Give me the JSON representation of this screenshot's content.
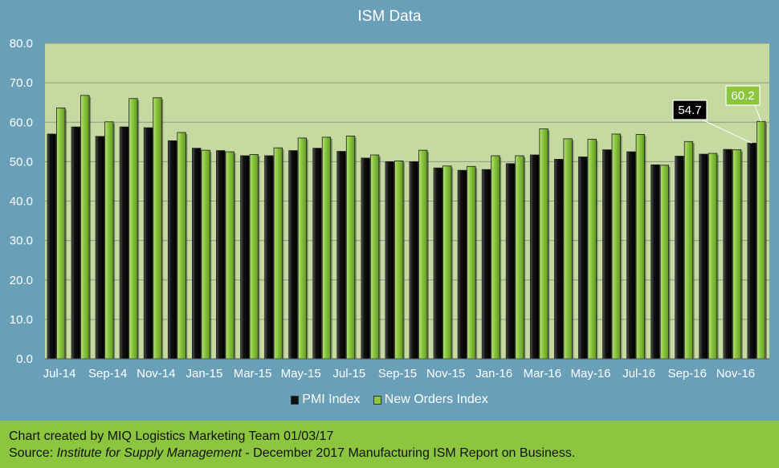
{
  "chart_data": {
    "type": "bar",
    "title": "ISM Data",
    "categories": [
      "Jul-14",
      "Aug-14",
      "Sep-14",
      "Oct-14",
      "Nov-14",
      "Dec-14",
      "Jan-15",
      "Feb-15",
      "Mar-15",
      "Apr-15",
      "May-15",
      "Jun-15",
      "Jul-15",
      "Aug-15",
      "Sep-15",
      "Oct-15",
      "Nov-15",
      "Dec-15",
      "Jan-16",
      "Feb-16",
      "Mar-16",
      "Apr-16",
      "May-16",
      "Jun-16",
      "Jul-16",
      "Aug-16",
      "Sep-16",
      "Oct-16",
      "Nov-16",
      "Dec-16"
    ],
    "tick_labels": [
      "Jul-14",
      "",
      "Sep-14",
      "",
      "Nov-14",
      "",
      "Jan-15",
      "",
      "Mar-15",
      "",
      "May-15",
      "",
      "Jul-15",
      "",
      "Sep-15",
      "",
      "Nov-15",
      "",
      "Jan-16",
      "",
      "Mar-16",
      "",
      "May-16",
      "",
      "Jul-16",
      "",
      "Sep-16",
      "",
      "Nov-16",
      ""
    ],
    "series": [
      {
        "name": "PMI Index",
        "color": "#111111",
        "values": [
          57.0,
          58.8,
          56.4,
          58.8,
          58.6,
          55.3,
          53.4,
          52.8,
          51.5,
          51.5,
          52.8,
          53.4,
          52.6,
          50.9,
          50.0,
          50.0,
          48.4,
          47.8,
          48.0,
          49.5,
          51.7,
          50.6,
          51.2,
          53.0,
          52.5,
          49.2,
          51.4,
          51.9,
          53.1,
          54.7
        ]
      },
      {
        "name": "New Orders Index",
        "color": "#8cc63f",
        "values": [
          63.6,
          66.8,
          60.1,
          66.0,
          66.2,
          57.4,
          52.9,
          52.5,
          51.8,
          53.5,
          56.0,
          56.2,
          56.5,
          51.7,
          50.2,
          52.9,
          48.9,
          48.8,
          51.5,
          51.5,
          58.3,
          55.8,
          55.7,
          57.0,
          56.9,
          49.1,
          55.1,
          52.1,
          53.0,
          60.2
        ]
      }
    ],
    "ylim": [
      0,
      80
    ],
    "yticks": [
      "0.0",
      "10.0",
      "20.0",
      "30.0",
      "40.0",
      "50.0",
      "60.0",
      "70.0",
      "80.0"
    ],
    "grid": true,
    "legend_position": "bottom",
    "callouts": [
      {
        "series": "PMI Index",
        "index": 29,
        "label": "54.7"
      },
      {
        "series": "New Orders Index",
        "index": 29,
        "label": "60.2"
      }
    ],
    "colors": {
      "background": "#6a9fb8",
      "plot_background": "#c5d9a1",
      "footer": "#8cc63f"
    }
  },
  "legend": {
    "pmi_label": "PMI Index",
    "orders_label": "New Orders Index"
  },
  "footer": {
    "line1": "Chart created by MIQ Logistics Marketing Team 01/03/17",
    "source_prefix": "Source: ",
    "source_italic": "Institute for Supply Management",
    "source_suffix": " - December 2017 Manufacturing ISM Report on Business."
  }
}
